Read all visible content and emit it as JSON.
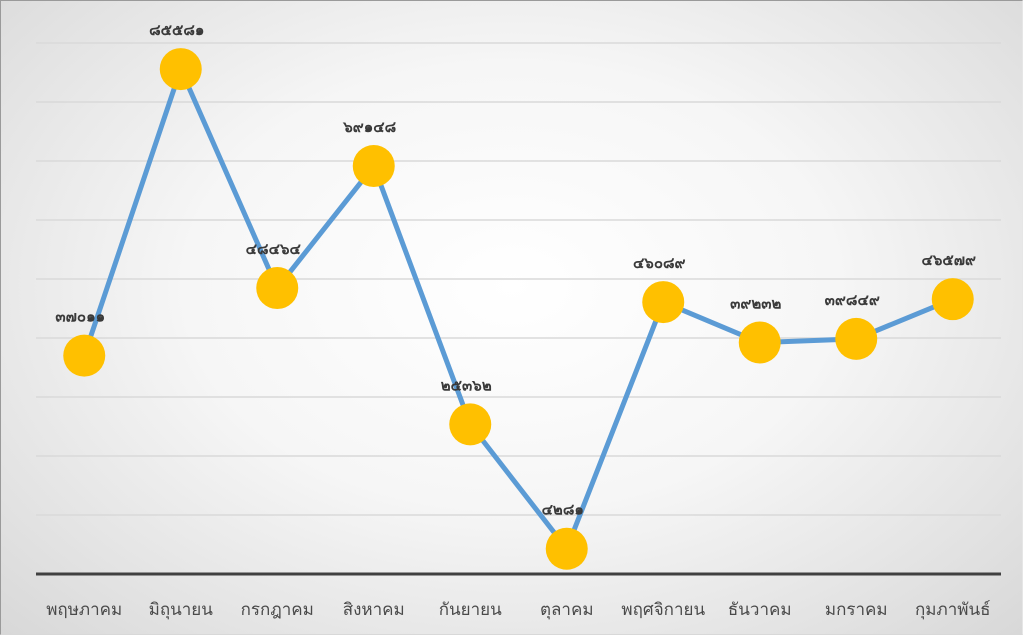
{
  "chart_data": {
    "type": "line",
    "title": "",
    "xlabel": "",
    "ylabel": "",
    "categories": [
      "พฤษภาคม",
      "มิถุนายน",
      "กรกฎาคม",
      "สิงหาคม",
      "กันยายน",
      "ตุลาคม",
      "พฤศจิกายน",
      "ธันวาคม",
      "มกราคม",
      "กุมภาพันธ์"
    ],
    "series": [
      {
        "values": [
          37011,
          85581,
          48464,
          69148,
          25362,
          4281,
          46089,
          39232,
          39849,
          46579
        ],
        "labels": [
          "๓๗๐๑๑",
          "๘๕๕๘๑",
          "๔๘๔๖๔",
          "๖๙๑๔๘",
          "๒๕๓๖๒",
          "๔๒๘๑",
          "๔๖๐๘๙",
          "๓๙๒๓๒",
          "๓๙๘๔๙",
          "๔๖๕๗๙"
        ]
      }
    ],
    "ylim": [
      0,
      90000
    ],
    "y_tick_step": 10000,
    "grid": true,
    "legend": "none",
    "colors": {
      "line": "#5b9bd5",
      "marker": "#ffc000",
      "grid": "#d9d9d9",
      "axis": "#404040"
    }
  }
}
